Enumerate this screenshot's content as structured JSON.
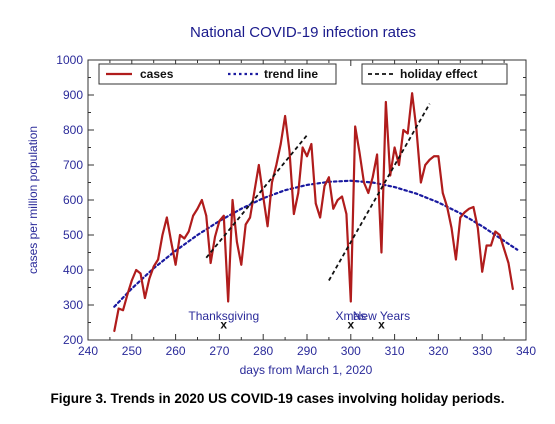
{
  "caption": "Figure 3. Trends in 2020 US COVID-19 cases involving holiday periods.",
  "chart_data": {
    "type": "line",
    "title": "National COVID-19 infection rates",
    "xlabel": "days from March 1, 2020",
    "ylabel": "cases per million population",
    "xlim": [
      240,
      340
    ],
    "ylim": [
      200,
      1000
    ],
    "xticks": [
      240,
      250,
      260,
      270,
      280,
      290,
      300,
      310,
      320,
      330,
      340
    ],
    "yticks": [
      200,
      300,
      400,
      500,
      600,
      700,
      800,
      900,
      1000
    ],
    "grid": false,
    "legend": [
      "cases",
      "trend line",
      "holiday effect"
    ],
    "colors": {
      "cases": "#b01c1c",
      "trend": "#1a1aa0",
      "holiday": "#111111",
      "text": "#2b2b9a"
    },
    "series": [
      {
        "name": "cases",
        "style": "solid",
        "x": [
          246,
          247,
          248,
          249,
          250,
          251,
          252,
          253,
          254,
          255,
          256,
          257,
          258,
          259,
          260,
          261,
          262,
          263,
          264,
          265,
          266,
          267,
          268,
          269,
          270,
          271,
          272,
          273,
          274,
          275,
          276,
          277,
          278,
          279,
          280,
          281,
          282,
          283,
          284,
          285,
          286,
          287,
          288,
          289,
          290,
          291,
          292,
          293,
          294,
          295,
          296,
          297,
          298,
          299,
          300,
          301,
          302,
          303,
          304,
          305,
          306,
          307,
          308,
          309,
          310,
          311,
          312,
          313,
          314,
          315,
          316,
          317,
          318,
          319,
          320,
          321,
          322,
          323,
          324,
          325,
          326,
          327,
          328,
          329,
          330,
          331,
          332,
          333,
          334,
          335,
          336,
          337
        ],
        "y": [
          225,
          290,
          285,
          330,
          370,
          400,
          390,
          320,
          375,
          410,
          430,
          500,
          550,
          480,
          415,
          500,
          490,
          510,
          555,
          575,
          600,
          555,
          420,
          495,
          540,
          555,
          310,
          600,
          480,
          415,
          530,
          550,
          625,
          700,
          610,
          525,
          650,
          700,
          760,
          840,
          740,
          560,
          620,
          750,
          725,
          760,
          590,
          550,
          640,
          665,
          575,
          600,
          610,
          560,
          310,
          810,
          735,
          650,
          620,
          665,
          730,
          450,
          880,
          670,
          750,
          700,
          800,
          790,
          905,
          800,
          650,
          700,
          715,
          725,
          725,
          620,
          580,
          520,
          430,
          550,
          565,
          575,
          580,
          520,
          395,
          470,
          470,
          510,
          500,
          460,
          420,
          345
        ]
      },
      {
        "name": "trend line",
        "style": "dotted",
        "x": [
          246,
          250,
          255,
          260,
          265,
          270,
          275,
          280,
          285,
          290,
          295,
          300,
          305,
          310,
          315,
          320,
          325,
          330,
          335,
          338
        ],
        "y": [
          295,
          347,
          405,
          455,
          500,
          540,
          575,
          605,
          628,
          643,
          652,
          655,
          650,
          637,
          618,
          593,
          562,
          525,
          483,
          458
        ]
      },
      {
        "name": "holiday effect",
        "style": "dashed",
        "segments": [
          {
            "x": [
              267,
              290
            ],
            "y": [
              435,
              785
            ]
          },
          {
            "x": [
              295,
              318
            ],
            "y": [
              370,
              875
            ]
          }
        ]
      }
    ],
    "annotations": [
      {
        "text": "Thanksgiving",
        "x": 271
      },
      {
        "text": "Xmas",
        "x": 300
      },
      {
        "text": "New Years",
        "x": 307
      }
    ],
    "markers": [
      {
        "symbol": "x",
        "x": 271,
        "y": 247
      },
      {
        "symbol": "x",
        "x": 300,
        "y": 247
      },
      {
        "symbol": "x",
        "x": 307,
        "y": 247
      }
    ]
  }
}
